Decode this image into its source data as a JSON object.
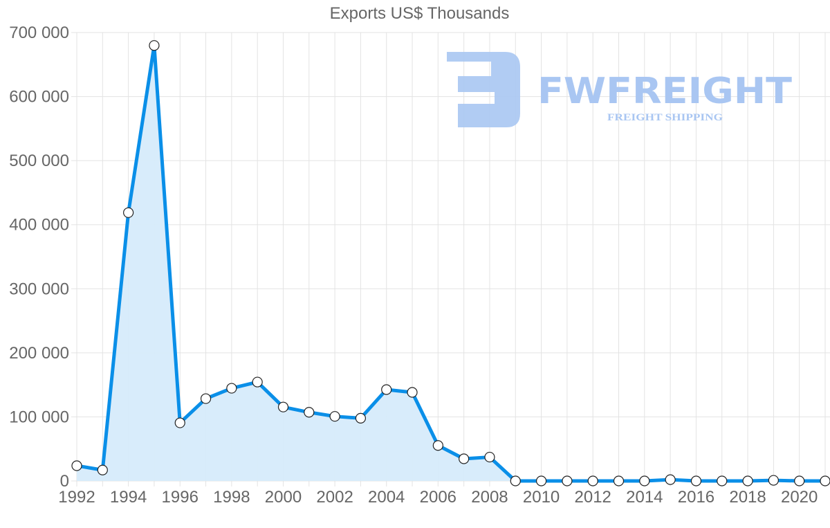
{
  "chart_data": {
    "type": "area",
    "title": "Exports US$ Thousands",
    "xlabel": "",
    "ylabel": "",
    "x": [
      1992,
      1993,
      1994,
      1995,
      1996,
      1997,
      1998,
      1999,
      2000,
      2001,
      2002,
      2003,
      2004,
      2005,
      2006,
      2007,
      2008,
      2009,
      2010,
      2011,
      2012,
      2013,
      2014,
      2015,
      2016,
      2017,
      2018,
      2019,
      2020,
      2021
    ],
    "series": [
      {
        "name": "Exports US$ Thousands",
        "color": "#0a8fe8",
        "fill": "#d6ebfb",
        "values": [
          23800,
          17000,
          418800,
          679800,
          90700,
          128500,
          144700,
          154400,
          115400,
          107200,
          100800,
          97900,
          142600,
          138300,
          55400,
          34600,
          37200,
          0,
          0,
          0,
          0,
          0,
          0,
          2000,
          0,
          0,
          0,
          1000,
          0,
          0
        ]
      }
    ],
    "ylim": [
      0,
      700000
    ],
    "yticks": [
      0,
      100000,
      200000,
      300000,
      400000,
      500000,
      600000,
      700000
    ],
    "ytick_labels": [
      "0",
      "100 000",
      "200 000",
      "300 000",
      "400 000",
      "500 000",
      "600 000",
      "700 000"
    ],
    "xtick_labels": [
      "1992",
      "1994",
      "1996",
      "1998",
      "2000",
      "2002",
      "2004",
      "2006",
      "2008",
      "2010",
      "2012",
      "2014",
      "2016",
      "2018",
      "2020"
    ],
    "grid": true,
    "legend": "none"
  },
  "watermark": {
    "brand": "FWFREIGHT",
    "tagline": "FREIGHT SHIPPING",
    "color": "#a9c6f2"
  },
  "colors": {
    "line": "#0a8fe8",
    "fill": "#d6ebfb",
    "grid": "#e3e3e3",
    "text": "#666666"
  }
}
